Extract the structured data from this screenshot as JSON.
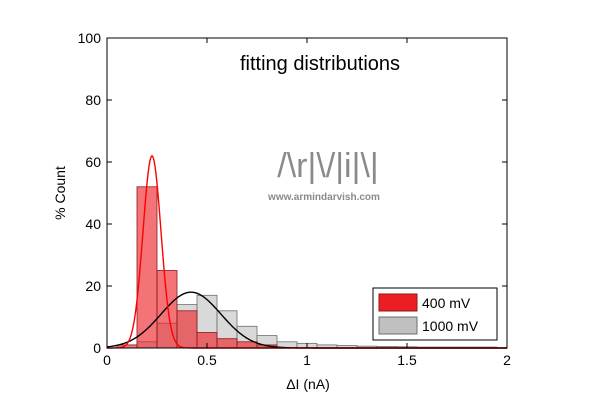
{
  "chart_data": {
    "type": "bar",
    "title": "fitting distributions",
    "xlabel": "ΔI (nA)",
    "ylabel": "% Count",
    "xlim": [
      0,
      2
    ],
    "ylim": [
      0,
      100
    ],
    "xticks": [
      0,
      0.5,
      1,
      1.5,
      2
    ],
    "xtick_labels": [
      "0",
      "0.5",
      "1",
      "1.5",
      "2"
    ],
    "yticks": [
      0,
      20,
      40,
      60,
      80,
      100
    ],
    "ytick_labels": [
      "0",
      "20",
      "40",
      "60",
      "80",
      "100"
    ],
    "grid": false,
    "legend_position": "bottom-right",
    "bin_width": 0.1,
    "series": [
      {
        "name": "400 mV",
        "color": "#ee1d23",
        "bins": [
          {
            "x0": 0.05,
            "x1": 0.15,
            "value": 1
          },
          {
            "x0": 0.15,
            "x1": 0.25,
            "value": 52
          },
          {
            "x0": 0.25,
            "x1": 0.35,
            "value": 25
          },
          {
            "x0": 0.35,
            "x1": 0.45,
            "value": 12
          },
          {
            "x0": 0.45,
            "x1": 0.55,
            "value": 5
          },
          {
            "x0": 0.55,
            "x1": 0.65,
            "value": 3
          },
          {
            "x0": 0.65,
            "x1": 0.75,
            "value": 2
          },
          {
            "x0": 0.75,
            "x1": 0.85,
            "value": 1
          }
        ],
        "fit": {
          "type": "gaussian",
          "peak": 62,
          "center": 0.225,
          "sigma": 0.045
        }
      },
      {
        "name": "1000 mV",
        "color": "#c0c0c0",
        "bins": [
          {
            "x0": 0.15,
            "x1": 0.25,
            "value": 2
          },
          {
            "x0": 0.25,
            "x1": 0.35,
            "value": 8
          },
          {
            "x0": 0.35,
            "x1": 0.45,
            "value": 14
          },
          {
            "x0": 0.45,
            "x1": 0.55,
            "value": 17
          },
          {
            "x0": 0.55,
            "x1": 0.65,
            "value": 12
          },
          {
            "x0": 0.65,
            "x1": 0.75,
            "value": 7
          },
          {
            "x0": 0.75,
            "x1": 0.85,
            "value": 4
          },
          {
            "x0": 0.85,
            "x1": 0.95,
            "value": 2
          },
          {
            "x0": 0.95,
            "x1": 1.05,
            "value": 1.5
          },
          {
            "x0": 1.05,
            "x1": 1.15,
            "value": 1
          },
          {
            "x0": 1.15,
            "x1": 1.25,
            "value": 0.8
          },
          {
            "x0": 1.25,
            "x1": 1.35,
            "value": 0.6
          },
          {
            "x0": 1.35,
            "x1": 1.45,
            "value": 0.5
          },
          {
            "x0": 1.45,
            "x1": 1.55,
            "value": 0.4
          },
          {
            "x0": 1.55,
            "x1": 1.65,
            "value": 0.3
          },
          {
            "x0": 1.65,
            "x1": 1.75,
            "value": 0.3
          },
          {
            "x0": 1.75,
            "x1": 1.85,
            "value": 0.3
          },
          {
            "x0": 1.85,
            "x1": 1.95,
            "value": 0.3
          }
        ],
        "fit": {
          "type": "gaussian",
          "peak": 18,
          "center": 0.42,
          "sigma": 0.15
        }
      }
    ]
  },
  "watermark": {
    "logo_text": "/\\r|\\/|i|\\|",
    "url": "www.armindarvish.com"
  }
}
